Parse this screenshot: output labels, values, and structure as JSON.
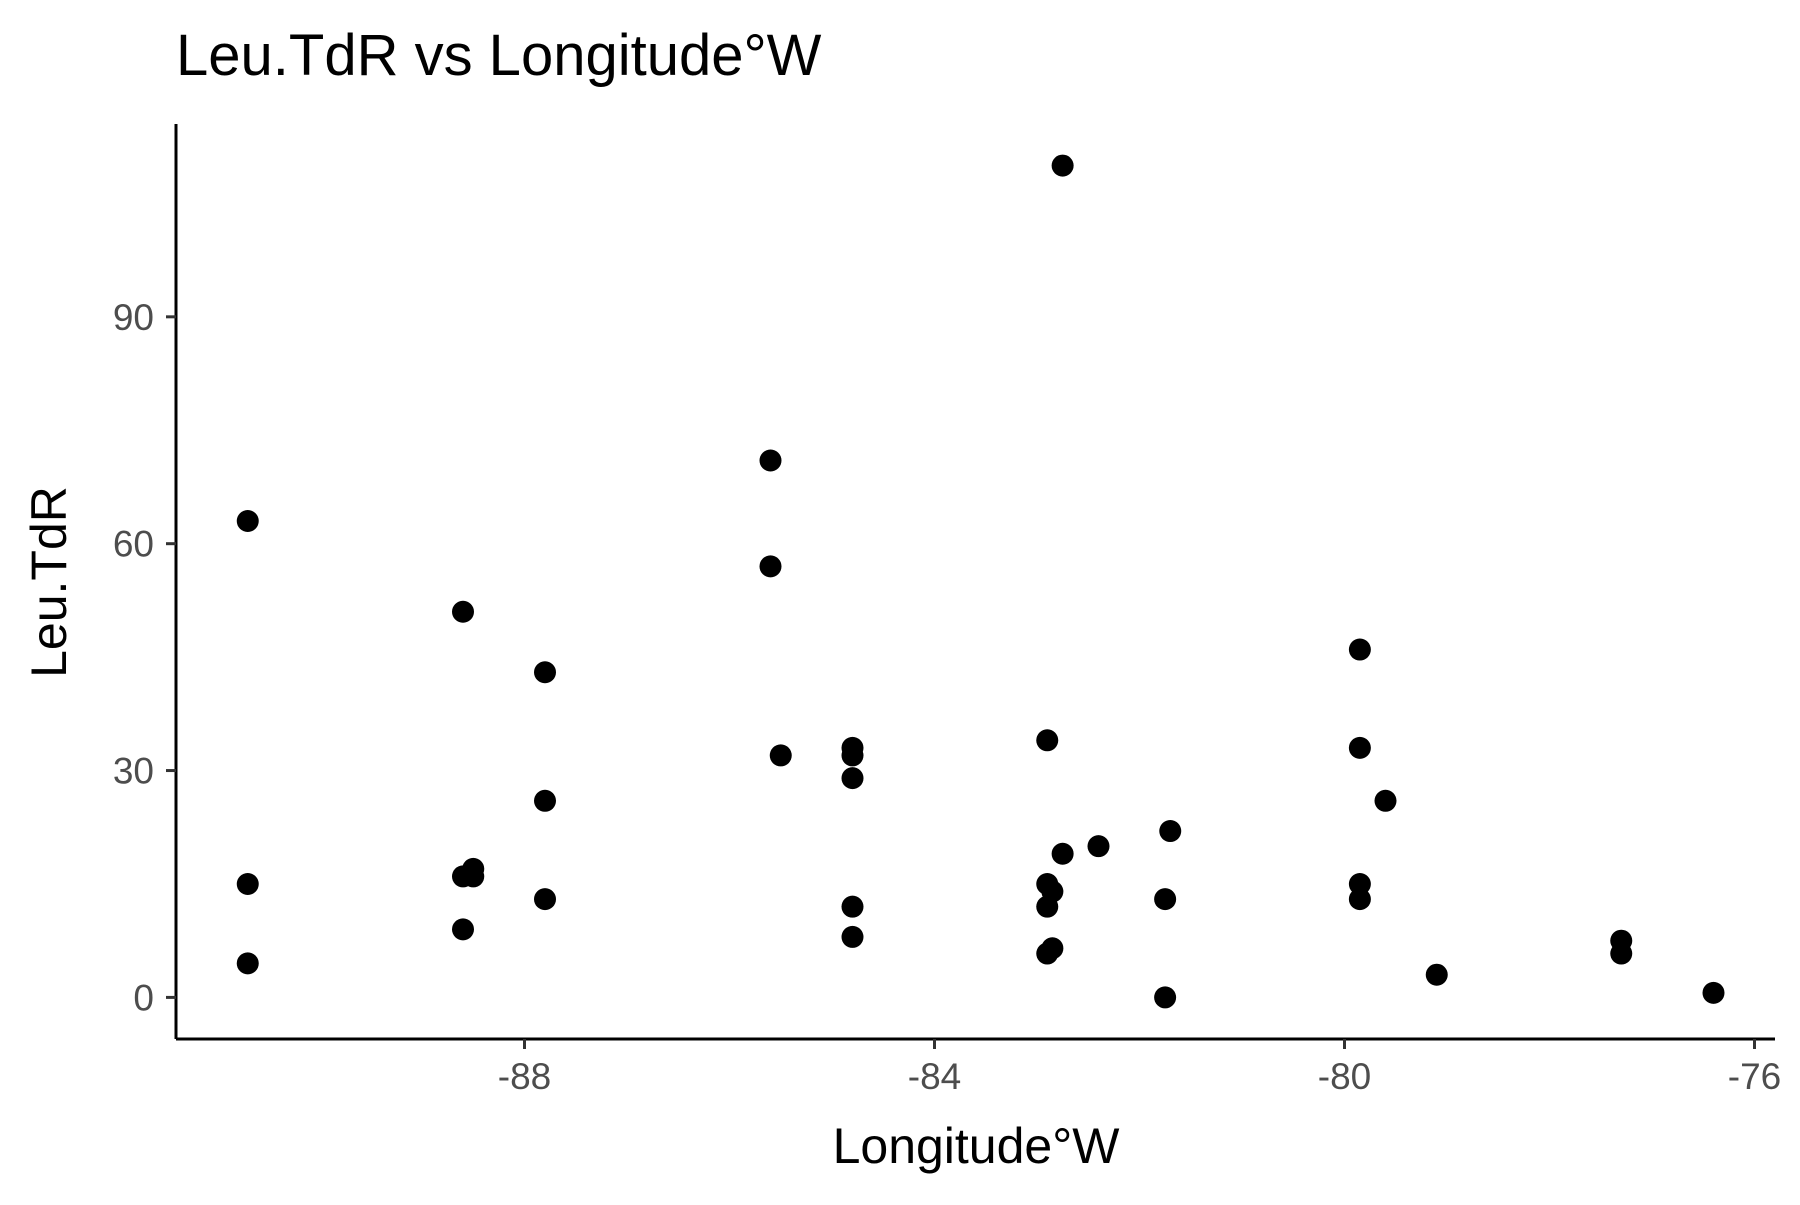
{
  "chart_data": {
    "type": "scatter",
    "title": "Leu.TdR vs Longitude°W",
    "xlabel": "Longitude°W",
    "ylabel": "Leu.TdR",
    "xlim": [
      -91.4,
      -75.8
    ],
    "ylim": [
      -5.5,
      115.5
    ],
    "xticks": [
      -88,
      -84,
      -80,
      -76
    ],
    "yticks": [
      0,
      30,
      60,
      90
    ],
    "grid": false,
    "legend": "none",
    "point_color": "#000000",
    "series": [
      {
        "points": [
          [
            -90.7,
            63
          ],
          [
            -90.7,
            15
          ],
          [
            -90.7,
            4.5
          ],
          [
            -88.6,
            51
          ],
          [
            -88.6,
            16
          ],
          [
            -88.6,
            9
          ],
          [
            -88.5,
            17
          ],
          [
            -88.5,
            16
          ],
          [
            -87.8,
            43
          ],
          [
            -87.8,
            26
          ],
          [
            -87.8,
            13
          ],
          [
            -85.6,
            71
          ],
          [
            -85.6,
            57
          ],
          [
            -85.5,
            32
          ],
          [
            -84.8,
            33
          ],
          [
            -84.8,
            32
          ],
          [
            -84.8,
            29
          ],
          [
            -84.8,
            12
          ],
          [
            -84.8,
            8
          ],
          [
            -82.9,
            34
          ],
          [
            -82.9,
            15
          ],
          [
            -82.85,
            14
          ],
          [
            -82.9,
            12
          ],
          [
            -82.85,
            6.5
          ],
          [
            -82.9,
            5.8
          ],
          [
            -82.75,
            110
          ],
          [
            -82.75,
            19
          ],
          [
            -82.4,
            20
          ],
          [
            -81.7,
            22
          ],
          [
            -81.75,
            13
          ],
          [
            -81.75,
            0
          ],
          [
            -79.85,
            46
          ],
          [
            -79.85,
            33
          ],
          [
            -79.6,
            26
          ],
          [
            -79.85,
            15
          ],
          [
            -79.85,
            13
          ],
          [
            -79.1,
            3
          ],
          [
            -77.3,
            7.5
          ],
          [
            -77.3,
            5.8
          ],
          [
            -76.4,
            0.6
          ]
        ]
      }
    ]
  }
}
